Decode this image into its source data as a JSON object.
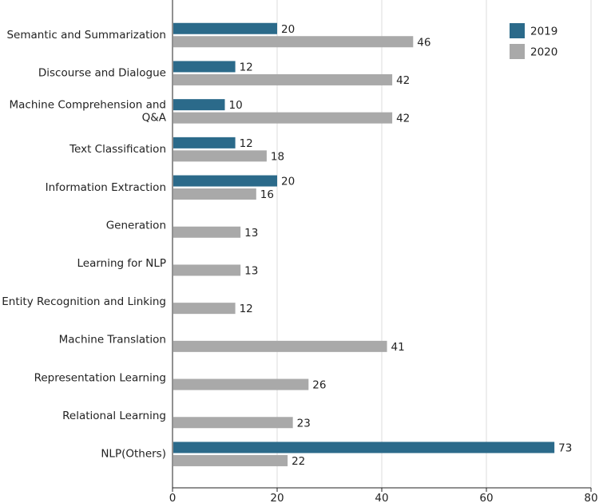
{
  "chart_data": {
    "type": "bar",
    "orientation": "horizontal",
    "categories": [
      [
        "Semantic and Summarization"
      ],
      [
        "Discourse and Dialogue"
      ],
      [
        "Machine Comprehension and",
        "Q&A"
      ],
      [
        "Text Classification"
      ],
      [
        "Information Extraction"
      ],
      [
        "Generation"
      ],
      [
        "Learning for NLP"
      ],
      [
        "Entity Recognition and Linking"
      ],
      [
        "Machine Translation"
      ],
      [
        "Representation Learning"
      ],
      [
        "Relational Learning"
      ],
      [
        "NLP(Others)"
      ]
    ],
    "series": [
      {
        "name": "2019",
        "color": "#2b6a8a",
        "values": [
          20,
          12,
          10,
          12,
          20,
          null,
          null,
          null,
          null,
          null,
          null,
          73
        ]
      },
      {
        "name": "2020",
        "color": "#a9a9a9",
        "values": [
          46,
          42,
          42,
          18,
          16,
          13,
          13,
          12,
          41,
          26,
          23,
          22
        ]
      }
    ],
    "xlim": [
      0,
      80
    ],
    "xticks": [
      "0",
      "20",
      "40",
      "60",
      "80"
    ],
    "grid": true,
    "legend_position": "top-right",
    "title": "",
    "xlabel": "",
    "ylabel": ""
  }
}
